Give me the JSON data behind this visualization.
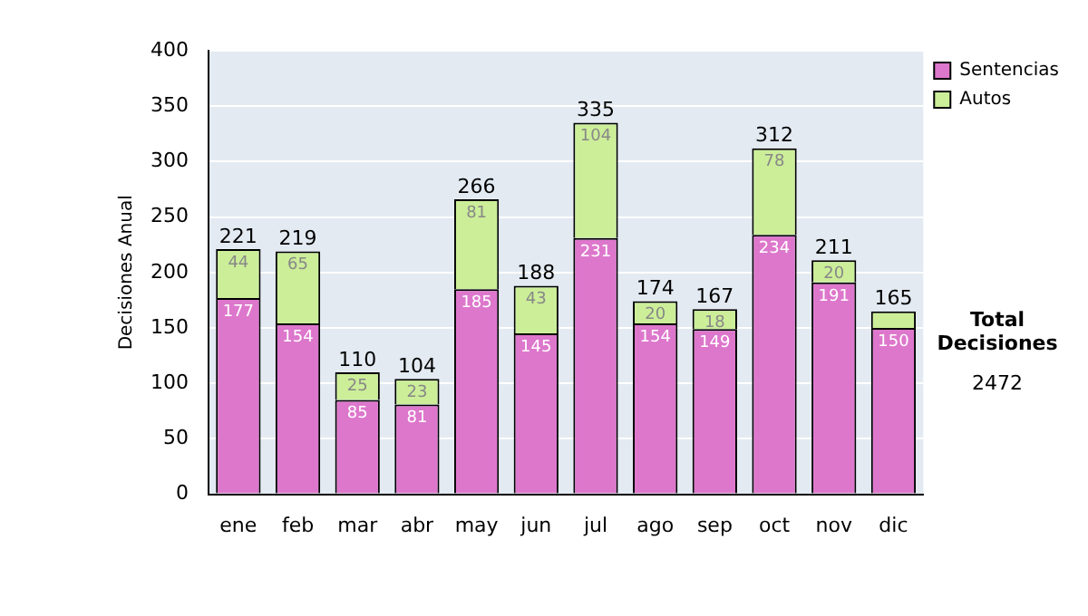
{
  "chart_data": {
    "type": "bar",
    "stacked": true,
    "ylabel": "Decisiones Anual",
    "categories": [
      "ene",
      "feb",
      "mar",
      "abr",
      "may",
      "jun",
      "jul",
      "ago",
      "sep",
      "oct",
      "nov",
      "dic"
    ],
    "series": [
      {
        "name": "Sentencias",
        "color": "#dd77cc",
        "values": [
          177,
          154,
          85,
          81,
          185,
          145,
          231,
          154,
          149,
          234,
          191,
          150
        ],
        "value_labels": [
          "177",
          "154",
          "85",
          "81",
          "185",
          "145",
          "231",
          "154",
          "149",
          "234",
          "191",
          "150"
        ]
      },
      {
        "name": "Autos",
        "color": "#ccee99",
        "values": [
          44,
          65,
          25,
          23,
          81,
          43,
          104,
          20,
          18,
          78,
          20,
          15
        ],
        "value_labels": [
          "44",
          "65",
          "25",
          "23",
          "81",
          "43",
          "104",
          "20",
          "18",
          "78",
          "20",
          null
        ]
      }
    ],
    "totals": [
      "221",
      "219",
      "110",
      "104",
      "266",
      "188",
      "335",
      "174",
      "167",
      "312",
      "211",
      "165"
    ],
    "ylim": [
      0,
      400
    ],
    "yticks": [
      0,
      50,
      100,
      150,
      200,
      250,
      300,
      350,
      400
    ],
    "grid": "y",
    "legend": "right",
    "annotations": [
      "Total Decisiones",
      "2472"
    ]
  }
}
